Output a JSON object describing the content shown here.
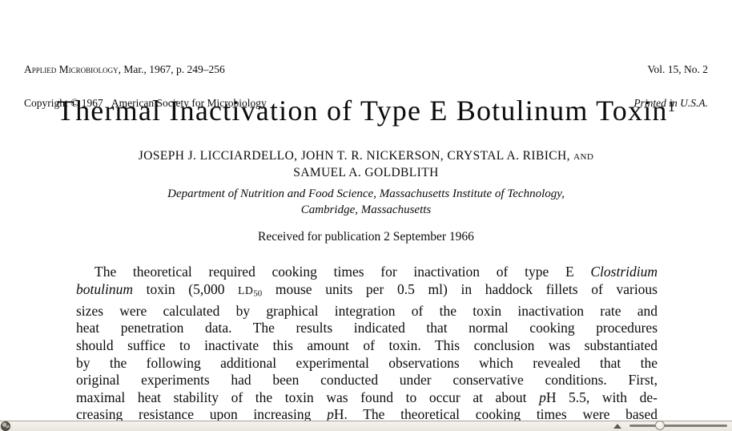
{
  "journal_header": {
    "left": {
      "journal_name": "Applied Microbiology",
      "issue_info": ", Mar., 1967, p. 249–256",
      "copyright_line": "Copyright © 1967   American Society for Microbiology"
    },
    "right": {
      "volume_line": "Vol. 15, No. 2",
      "printed_line": "Printed in U.S.A."
    }
  },
  "article": {
    "title": "Thermal Inactivation of Type E Botulinum Toxin",
    "title_footnote_marker": "1",
    "authors_line1_names": "JOSEPH J. LICCIARDELLO, JOHN T. R. NICKERSON, CRYSTAL A. RIBICH, ",
    "authors_line1_and": "and",
    "authors_line2": "SAMUEL A. GOLDBLITH",
    "affiliation_line1": "Department of Nutrition and Food Science, Massachusetts Institute of Technology,",
    "affiliation_line2": "Cambridge, Massachusetts",
    "received_line": "Received for publication 2 September 1966"
  },
  "abstract": {
    "lines": [
      [
        {
          "t": "The theoretical required cooking times for inactivation of type E ",
          "s": "n"
        },
        {
          "t": "Clostridium",
          "s": "i"
        }
      ],
      [
        {
          "t": "botulinum",
          "s": "i"
        },
        {
          "t": " toxin (5,000 ",
          "s": "n"
        },
        {
          "t": "LD",
          "s": "sc"
        },
        {
          "t": "50",
          "s": "sub"
        },
        {
          "t": " mouse units per 0.5 ml) in haddock fillets of various",
          "s": "n"
        }
      ],
      [
        {
          "t": "sizes were calculated by graphical integration of the toxin inactivation rate and",
          "s": "n"
        }
      ],
      [
        {
          "t": "heat penetration data. The results indicated that normal cooking procedures",
          "s": "n"
        }
      ],
      [
        {
          "t": "should suffice to inactivate this amount of toxin. This conclusion was substantiated",
          "s": "n"
        }
      ],
      [
        {
          "t": "by the following additional experimental observations which revealed that the",
          "s": "n"
        }
      ],
      [
        {
          "t": "original experiments had been conducted under conservative conditions. First,",
          "s": "n"
        }
      ],
      [
        {
          "t": "maximal heat stability of the toxin was found to occur at about ",
          "s": "n"
        },
        {
          "t": "p",
          "s": "i"
        },
        {
          "t": "H 5.5, with de-",
          "s": "n"
        }
      ],
      [
        {
          "t": "creasing resistance upon increasing ",
          "s": "n"
        },
        {
          "t": "p",
          "s": "i"
        },
        {
          "t": "H. The theoretical cooking times were based",
          "s": "n"
        }
      ]
    ]
  },
  "viewer": {
    "icons": {
      "globe": "globe-icon",
      "up_arrow": "up-arrow-icon",
      "slider_knob": "zoom-slider-knob"
    },
    "slider": {
      "knob_position_pct": 31
    },
    "colors": {
      "page_background": "#ffffff",
      "text": "#0c0c0c",
      "bar_background": "#efece4",
      "bar_border": "#a9a49a"
    }
  }
}
